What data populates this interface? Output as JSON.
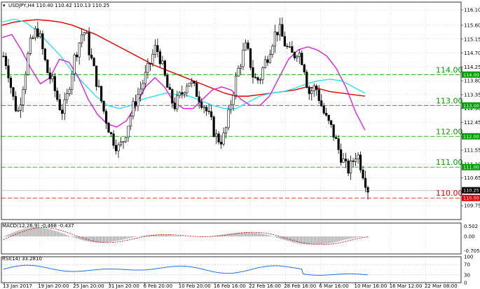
{
  "header": {
    "symbol_line": "USDJPY,H4  110.40 110.42 110.13 110.25",
    "macd_label": "MACD(12,26,9) -0.468 -0.437",
    "rsi_label": "RSI(14) 33.2810"
  },
  "chart_data": {
    "type": "candlestick",
    "symbol": "USDJPY",
    "timeframe": "H4",
    "ohlc_last": {
      "open": 110.4,
      "high": 110.42,
      "low": 110.13,
      "close": 110.25
    },
    "current_price": "110.25",
    "price_ylim": [
      109.3,
      116.35
    ],
    "price_ticks": [
      "116.10",
      "115.60",
      "115.15",
      "114.70",
      "114.25",
      "113.80",
      "113.35",
      "112.90",
      "112.45",
      "112.00",
      "111.55",
      "111.10",
      "110.65",
      "110.20",
      "109.75"
    ],
    "x_labels": [
      "13 Jan 2017",
      "19 Jan 20:00",
      "25 Jan 20:00",
      "31 Jan 20:00",
      "6 Feb 20:00",
      "10 Feb 20:00",
      "16 Feb 16:00",
      "22 Feb 16:00",
      "28 Feb 16:00",
      "6 Mar 16:00",
      "10 Mar 16:00",
      "16 Mar 12:00",
      "22 Mar 08:00"
    ],
    "levels": [
      {
        "value": 114.0,
        "label": "114.00",
        "tag": "114.00",
        "color": "#00a000",
        "style": "dashed"
      },
      {
        "value": 113.0,
        "label": "113.00",
        "tag": "113.00",
        "color": "#00a000",
        "style": "dashed"
      },
      {
        "value": 112.0,
        "label": "112.00",
        "tag": "112.00",
        "color": "#00a000",
        "style": "dashed"
      },
      {
        "value": 111.0,
        "label": "111.00",
        "tag": "111.00",
        "color": "#00a000",
        "style": "dashed"
      },
      {
        "value": 110.0,
        "label": "110.00",
        "tag": "110.00",
        "color": "#e00000",
        "style": "dashed"
      }
    ],
    "close_path": [
      114.6,
      114.3,
      113.6,
      113.0,
      112.8,
      113.5,
      114.2,
      114.9,
      115.2,
      115.5,
      115.1,
      114.5,
      114.0,
      113.8,
      113.4,
      113.0,
      112.8,
      113.2,
      113.9,
      114.5,
      114.9,
      115.3,
      115.4,
      114.8,
      114.3,
      113.8,
      113.3,
      112.8,
      112.4,
      112.0,
      111.8,
      111.6,
      111.8,
      112.2,
      112.6,
      113.0,
      113.3,
      113.6,
      113.9,
      114.2,
      114.6,
      114.9,
      114.6,
      114.1,
      113.6,
      113.2,
      113.0,
      113.2,
      113.4,
      113.7,
      113.8,
      113.6,
      113.4,
      113.2,
      113.0,
      112.7,
      112.4,
      112.0,
      111.9,
      111.9,
      112.3,
      113.0,
      113.6,
      114.1,
      114.5,
      114.9,
      114.6,
      114.0,
      113.8,
      113.9,
      114.3,
      114.6,
      115.0,
      115.3,
      115.5,
      115.2,
      114.9,
      114.7,
      114.6,
      114.8,
      114.6,
      114.2,
      113.4,
      113.5,
      113.6,
      113.2,
      112.8,
      112.5,
      112.3,
      112.0,
      111.6,
      111.3,
      111.0,
      110.9,
      111.2,
      111.5,
      111.1,
      110.7,
      110.3
    ],
    "ma_red": [
      115.6,
      115.7,
      115.75,
      115.78,
      115.75,
      115.7,
      115.6,
      115.45,
      115.3,
      115.1,
      114.9,
      114.7,
      114.5,
      114.3,
      114.15,
      114.0,
      113.85,
      113.7,
      113.55,
      113.4,
      113.3,
      113.3,
      113.35,
      113.4,
      113.45,
      113.5,
      113.6,
      113.55,
      113.45,
      113.4,
      113.35,
      113.3
    ],
    "ma_cyan": [
      115.7,
      115.8,
      115.7,
      115.4,
      115.0,
      114.6,
      114.1,
      113.7,
      113.3,
      113.0,
      112.9,
      113.0,
      113.2,
      113.3,
      113.4,
      113.35,
      113.3,
      113.15,
      113.0,
      112.9,
      112.9,
      113.1,
      113.3,
      113.4,
      113.45,
      113.55,
      113.7,
      113.8,
      113.85,
      113.8,
      113.6,
      113.4
    ],
    "ma_magenta": [
      115.2,
      115.3,
      114.8,
      114.2,
      113.7,
      113.9,
      114.5,
      114.4,
      113.9,
      113.2,
      112.7,
      112.4,
      112.3,
      112.5,
      113.0,
      113.6,
      113.9,
      113.6,
      113.1,
      112.9,
      112.9,
      113.2,
      113.5,
      113.6,
      113.5,
      113.2,
      113.0,
      113.0,
      113.3,
      113.9,
      114.5,
      114.8,
      114.9,
      114.8,
      114.6,
      114.2,
      113.6,
      112.8,
      112.2
    ],
    "macd": {
      "ylim": [
        -0.85,
        0.65
      ],
      "ticks": [
        "0.502",
        "0.00",
        "-0.705"
      ],
      "main": -0.468,
      "signal": -0.437
    },
    "rsi": {
      "ylim": [
        0,
        100
      ],
      "ticks": [
        "100",
        "70",
        "30",
        "0"
      ],
      "value": 33.281
    }
  }
}
